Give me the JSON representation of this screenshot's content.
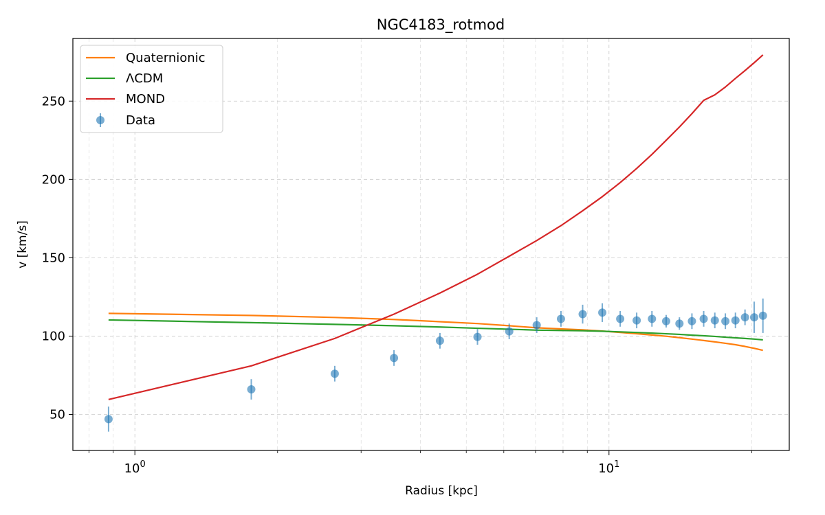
{
  "chart_data": {
    "type": "line",
    "title": "NGC4183_rotmod",
    "xlabel": "Radius [kpc]",
    "ylabel": "v [km/s]",
    "xscale": "log",
    "xlim": [
      0.74,
      24.0
    ],
    "ylim": [
      27,
      290
    ],
    "grid": true,
    "legend_position": "top-left",
    "xticks": [
      {
        "value": 1,
        "label": "10",
        "exp": "0"
      },
      {
        "value": 10,
        "label": "10",
        "exp": "1"
      }
    ],
    "yticks": [
      50,
      100,
      150,
      200,
      250
    ],
    "series": [
      {
        "name": "Quaternionic",
        "type": "line",
        "color": "#ff7f0e",
        "x": [
          0.88,
          1.76,
          2.64,
          3.52,
          4.4,
          5.28,
          6.16,
          7.04,
          7.92,
          8.8,
          9.68,
          10.56,
          11.44,
          12.32,
          13.2,
          14.08,
          14.96,
          15.84,
          16.72,
          17.6,
          18.48,
          19.36,
          20.24,
          21.12
        ],
        "y": [
          114.5,
          113.2,
          111.9,
          110.6,
          109.2,
          108.0,
          106.6,
          105.3,
          104.6,
          104.0,
          103.2,
          102.3,
          101.5,
          100.7,
          99.9,
          99.0,
          98.1,
          97.2,
          96.3,
          95.4,
          94.5,
          93.4,
          92.2,
          90.9
        ]
      },
      {
        "name": "ΛCDM",
        "type": "line",
        "color": "#2ca02c",
        "x": [
          0.88,
          1.76,
          2.64,
          3.52,
          4.4,
          5.28,
          6.16,
          7.04,
          7.92,
          8.8,
          9.68,
          10.56,
          11.44,
          12.32,
          13.2,
          14.08,
          14.96,
          15.84,
          16.72,
          17.6,
          18.48,
          19.36,
          20.24,
          21.12
        ],
        "y": [
          110.3,
          108.6,
          107.5,
          106.6,
          105.8,
          105.0,
          104.4,
          103.8,
          103.6,
          103.4,
          103.1,
          102.7,
          102.3,
          101.9,
          101.5,
          101.1,
          100.6,
          100.2,
          99.8,
          99.3,
          98.9,
          98.5,
          98.1,
          97.6
        ]
      },
      {
        "name": "MOND",
        "type": "line",
        "color": "#d62728",
        "x": [
          0.88,
          1.76,
          2.64,
          3.52,
          4.4,
          5.28,
          6.16,
          7.04,
          7.92,
          8.8,
          9.68,
          10.56,
          11.44,
          12.32,
          13.2,
          14.08,
          14.96,
          15.84,
          16.72,
          17.6,
          18.48,
          19.36,
          20.24,
          21.12
        ],
        "y": [
          59.5,
          81.0,
          98.5,
          114.0,
          127.5,
          139.5,
          151.0,
          161.0,
          170.5,
          180.0,
          189.0,
          198.0,
          207.0,
          216.0,
          225.0,
          233.5,
          242.0,
          250.5,
          254.0,
          259.0,
          264.5,
          269.5,
          274.5,
          279.5
        ]
      },
      {
        "name": "Data",
        "type": "errorbar",
        "color": "#1f77b4",
        "x": [
          0.88,
          1.76,
          2.64,
          3.52,
          4.4,
          5.28,
          6.16,
          7.04,
          7.92,
          8.8,
          9.68,
          10.56,
          11.44,
          12.32,
          13.2,
          14.08,
          14.96,
          15.84,
          16.72,
          17.6,
          18.48,
          19.36,
          20.24,
          21.12
        ],
        "y": [
          47,
          66,
          76,
          86,
          97,
          99.5,
          103,
          107,
          111,
          114,
          115,
          111,
          110,
          111,
          109.5,
          108,
          109.5,
          111,
          110,
          109.5,
          110,
          112,
          112,
          113
        ],
        "yerr": [
          8,
          6.5,
          5,
          5,
          5,
          5,
          5,
          5,
          5,
          6,
          6,
          5,
          5,
          5,
          4,
          4,
          5,
          5,
          5,
          5,
          5,
          5,
          10,
          11
        ]
      }
    ]
  }
}
